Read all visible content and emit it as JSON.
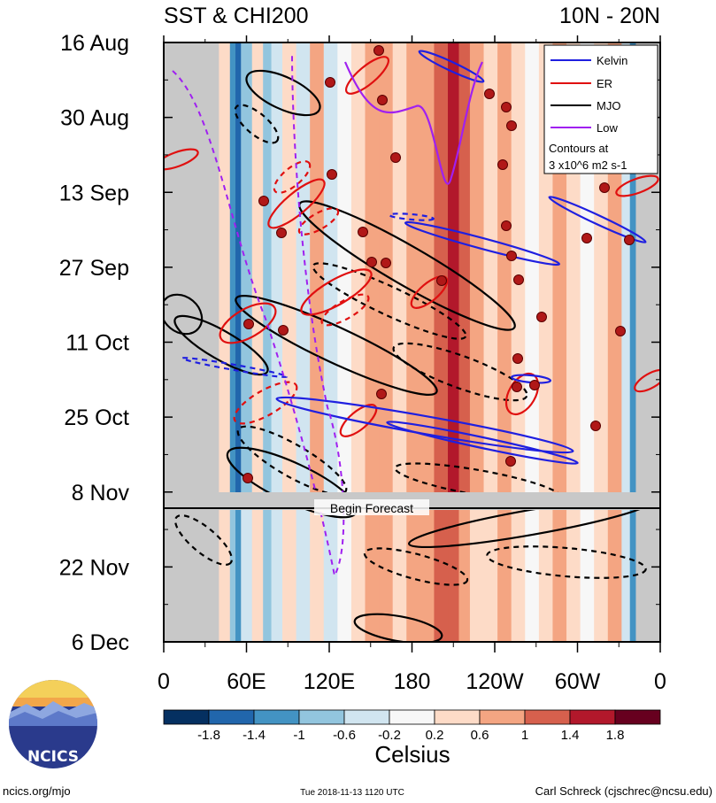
{
  "chart_data": {
    "type": "heatmap",
    "title": "SST & CHI200",
    "subtitle": "10N - 20N",
    "y_ticks": [
      "16 Aug",
      "30 Aug",
      "13 Sep",
      "27 Sep",
      "11 Oct",
      "25 Oct",
      "8 Nov",
      "22 Nov",
      "6 Dec"
    ],
    "x_ticks": [
      "0",
      "60E",
      "120E",
      "180",
      "120W",
      "60W",
      "0"
    ],
    "x_range": [
      0,
      360
    ],
    "colorbar": {
      "ticks": [
        "-1.8",
        "-1.4",
        "-1",
        "-0.6",
        "-0.2",
        "0.2",
        "0.6",
        "1",
        "1.4",
        "1.8"
      ],
      "colors": [
        "#053061",
        "#2166ac",
        "#4393c3",
        "#92c5de",
        "#d1e5f0",
        "#f7f7f7",
        "#fddbc7",
        "#f4a582",
        "#d6604d",
        "#b2182b",
        "#67001f"
      ],
      "label": "Celsius"
    },
    "bands": [
      {
        "lon": 0,
        "value": 0.0
      },
      {
        "lon": 40,
        "value": 0.3
      },
      {
        "lon": 48,
        "value": -1.0
      },
      {
        "lon": 52,
        "value": -1.6
      },
      {
        "lon": 56,
        "value": -0.6
      },
      {
        "lon": 64,
        "value": 0.5
      },
      {
        "lon": 72,
        "value": -0.9
      },
      {
        "lon": 78,
        "value": -0.3
      },
      {
        "lon": 86,
        "value": 0.6
      },
      {
        "lon": 96,
        "value": -0.4
      },
      {
        "lon": 106,
        "value": 0.7
      },
      {
        "lon": 116,
        "value": -0.3
      },
      {
        "lon": 126,
        "value": 0.2
      },
      {
        "lon": 136,
        "value": 0.4
      },
      {
        "lon": 146,
        "value": 0.9
      },
      {
        "lon": 156,
        "value": 1.0
      },
      {
        "lon": 166,
        "value": 0.5
      },
      {
        "lon": 176,
        "value": 0.8
      },
      {
        "lon": 186,
        "value": 1.0
      },
      {
        "lon": 196,
        "value": 1.3
      },
      {
        "lon": 206,
        "value": 1.6
      },
      {
        "lon": 214,
        "value": 1.1
      },
      {
        "lon": 222,
        "value": 0.7
      },
      {
        "lon": 232,
        "value": 0.3
      },
      {
        "lon": 242,
        "value": 0.9
      },
      {
        "lon": 252,
        "value": 0.5
      },
      {
        "lon": 262,
        "value": 0.1
      },
      {
        "lon": 272,
        "value": 0.6
      },
      {
        "lon": 282,
        "value": 0.9
      },
      {
        "lon": 292,
        "value": 0.4
      },
      {
        "lon": 302,
        "value": 0.2
      },
      {
        "lon": 312,
        "value": 0.6
      },
      {
        "lon": 322,
        "value": 0.8
      },
      {
        "lon": 332,
        "value": -0.4
      },
      {
        "lon": 338,
        "value": -1.2
      },
      {
        "lon": 342,
        "value": 0.0
      }
    ],
    "legend": {
      "placement": "top-right",
      "entries": [
        {
          "name": "Kelvin",
          "color": "#1f1fe0",
          "dash": false
        },
        {
          "name": "ER",
          "color": "#e01010",
          "dash": false
        },
        {
          "name": "MJO",
          "color": "#000000",
          "dash": false
        },
        {
          "name": "Low",
          "color": "#a020f0",
          "dash": false
        }
      ],
      "note_line1": "Contours at",
      "note_line2": "3 x10^6 m2 s-1"
    },
    "forecast_label": "Begin Forecast"
  },
  "logo": {
    "text": "NCICS"
  },
  "footer": {
    "left": "ncics.org/mjo",
    "center": "Tue 2018-11-13 1120 UTC",
    "right": "Carl Schreck (cjschrec@ncsu.edu)"
  }
}
